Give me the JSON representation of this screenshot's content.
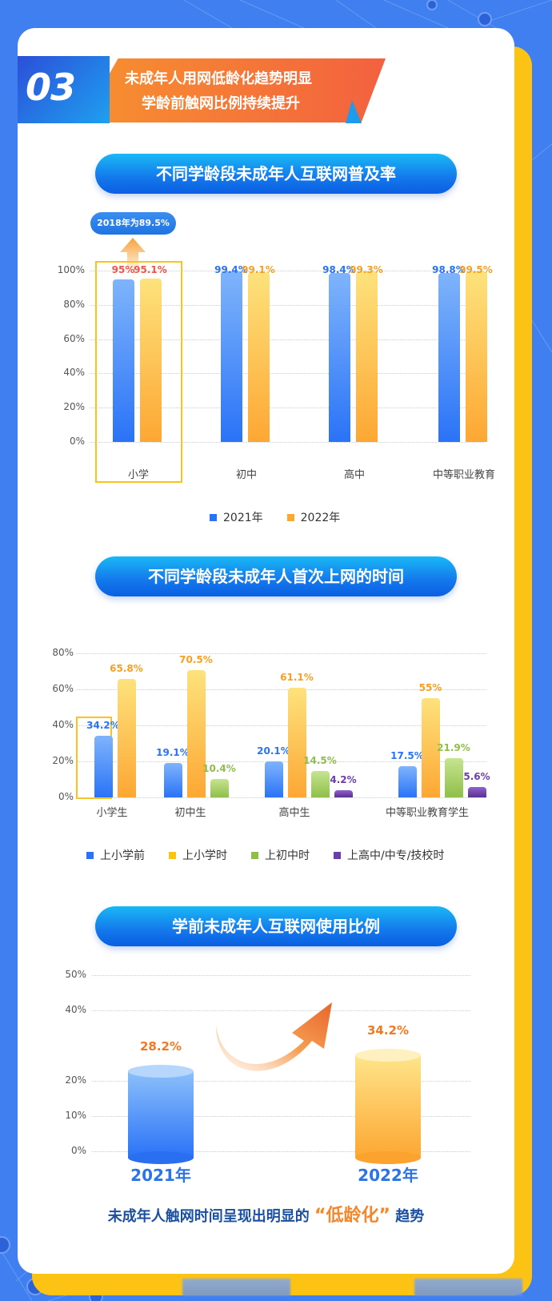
{
  "header": {
    "number": "03",
    "title_line1": "未成年人用网低龄化趋势明显",
    "title_line2": "学龄前触网比例持续提升"
  },
  "sections": [
    {
      "title": "不同学龄段未成年人互联网普及率"
    },
    {
      "title": "不同学龄段未成年人首次上网的时间"
    },
    {
      "title": "学前未成年人互联网使用比例"
    }
  ],
  "note": {
    "text": "2018年为89.5%"
  },
  "caption": {
    "prefix": "未成年人触网时间呈现出明显的",
    "highlight": "“低龄化”",
    "suffix": "趋势"
  },
  "colors": {
    "background": "#3f7fef",
    "frame": "#fdc314",
    "blue_series": "#2a73f7",
    "orange_series": "#fda733",
    "green_series": "#8fbf4a",
    "purple_series": "#5b2e94",
    "highlight_red": "#f0564a",
    "caption_blue": "#1b4fa0",
    "caption_orange": "#f5862a"
  },
  "chart_data": [
    {
      "type": "bar",
      "title": "不同学龄段未成年人互联网普及率",
      "categories": [
        "小学",
        "初中",
        "高中",
        "中等职业教育"
      ],
      "series": [
        {
          "name": "2021年",
          "values": [
            95,
            99.4,
            98.4,
            98.8
          ],
          "labels": [
            "95%",
            "99.4%",
            "98.4%",
            "98.8%"
          ]
        },
        {
          "name": "2022年",
          "values": [
            95.1,
            99.1,
            99.3,
            99.5
          ],
          "labels": [
            "95.1%",
            "99.1%",
            "99.3%",
            "99.5%"
          ]
        }
      ],
      "yticks": [
        "0%",
        "20%",
        "40%",
        "60%",
        "80%",
        "100%"
      ],
      "ylim": [
        0,
        100
      ],
      "annotation": "2018年为89.5%",
      "legend": [
        "2021年",
        "2022年"
      ],
      "legend_position": "bottom",
      "grid": true
    },
    {
      "type": "bar",
      "title": "不同学龄段未成年人首次上网的时间",
      "categories": [
        "小学生",
        "初中生",
        "高中生",
        "中等职业教育学生"
      ],
      "series": [
        {
          "name": "上小学前",
          "values": [
            34.2,
            19.1,
            20.1,
            17.5
          ],
          "labels": [
            "34.2%",
            "19.1%",
            "20.1%",
            "17.5%"
          ]
        },
        {
          "name": "上小学时",
          "values": [
            65.8,
            70.5,
            61.1,
            55
          ],
          "labels": [
            "65.8%",
            "70.5%",
            "61.1%",
            "55%"
          ]
        },
        {
          "name": "上初中时",
          "values": [
            null,
            10.4,
            14.5,
            21.9
          ],
          "labels": [
            "",
            "10.4%",
            "14.5%",
            "21.9%"
          ]
        },
        {
          "name": "上高中/中专/技校时",
          "values": [
            null,
            null,
            4.2,
            5.6
          ],
          "labels": [
            "",
            "",
            "4.2%",
            "5.6%"
          ]
        }
      ],
      "yticks": [
        "0%",
        "20%",
        "40%",
        "60%",
        "80%"
      ],
      "ylim": [
        0,
        80
      ],
      "legend": [
        "上小学前",
        "上小学时",
        "上初中时",
        "上高中/中专/技校时"
      ],
      "legend_position": "bottom",
      "grid": true
    },
    {
      "type": "bar",
      "title": "学前未成年人互联网使用比例",
      "categories": [
        "2021年",
        "2022年"
      ],
      "values": [
        28.2,
        34.2
      ],
      "labels": [
        "28.2%",
        "34.2%"
      ],
      "yticks": [
        "0%",
        "10%",
        "20%",
        "40%",
        "50%"
      ],
      "ylim": [
        0,
        50
      ],
      "grid": true
    }
  ]
}
